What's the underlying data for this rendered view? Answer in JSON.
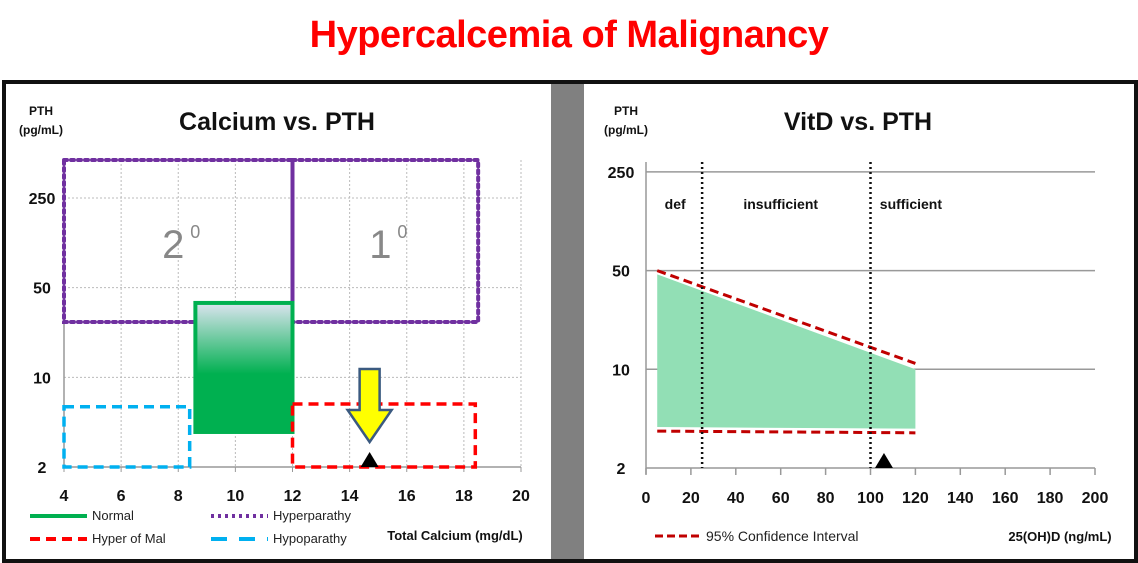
{
  "title": "Hypercalcemia of Malignancy",
  "chart_data": [
    {
      "type": "area",
      "title": "Calcium vs. PTH",
      "xlabel": "Total Calcium (mg/dL)",
      "ylabel": [
        "PTH",
        "(pg/mL)"
      ],
      "xlim": [
        4,
        20
      ],
      "xticks": [
        4,
        6,
        8,
        10,
        12,
        14,
        16,
        18,
        20
      ],
      "ylim": [
        2,
        500
      ],
      "yscale": "log",
      "yticks": [
        2,
        10,
        50,
        250
      ],
      "ytick_labels": [
        "2",
        "10",
        "50",
        "250"
      ],
      "grid": true,
      "legend_position": "bottom",
      "regions": [
        {
          "name": "Hyperparathy",
          "label": "2",
          "label_sup": "0",
          "x": [
            4,
            12
          ],
          "y": [
            27,
            500
          ],
          "style": "dotted",
          "color": "#7030a0"
        },
        {
          "name": "Hyperparathy",
          "label": "1",
          "label_sup": "0",
          "x": [
            12,
            18.5
          ],
          "y": [
            27,
            500
          ],
          "style": "dotted",
          "color": "#7030a0"
        },
        {
          "name": "Normal",
          "x": [
            8.6,
            12
          ],
          "y": [
            3.75,
            38
          ],
          "style": "solid-filled",
          "color": "#00b050"
        },
        {
          "name": "Hypoparathy",
          "x": [
            4,
            8.4
          ],
          "y": [
            2,
            5.9
          ],
          "style": "dashed",
          "color": "#00b0f0"
        },
        {
          "name": "Hyper of Mal",
          "x": [
            12,
            18.4
          ],
          "y": [
            2,
            6.2
          ],
          "style": "dashed",
          "color": "#ff0000"
        }
      ],
      "marker": {
        "shape": "triangle",
        "x": 14.7,
        "y": 2,
        "color": "#000000"
      },
      "arrow": {
        "x": 14.7,
        "color": "#ffff00",
        "direction": "down"
      },
      "legend": [
        {
          "label": "Normal",
          "style": "solid",
          "color": "#00b050"
        },
        {
          "label": "Hyperparathy",
          "style": "dotted",
          "color": "#7030a0"
        },
        {
          "label": "Hyper of Mal",
          "style": "dashed",
          "color": "#ff0000"
        },
        {
          "label": "Hypoparathy",
          "style": "longdash",
          "color": "#00b0f0"
        }
      ]
    },
    {
      "type": "area",
      "title": "VitD vs. PTH",
      "xlabel": "25(OH)D (ng/mL)",
      "ylabel": [
        "PTH",
        "(pg/mL)"
      ],
      "xlim": [
        0,
        200
      ],
      "xticks": [
        0,
        20,
        40,
        60,
        80,
        100,
        120,
        140,
        160,
        180,
        200
      ],
      "ylim": [
        2,
        500
      ],
      "yscale": "log",
      "yticks": [
        2,
        10,
        50,
        250
      ],
      "ytick_labels": [
        "2",
        "10",
        "50",
        "250"
      ],
      "grid": true,
      "legend_position": "bottom",
      "band": {
        "x": [
          5,
          120
        ],
        "upper": [
          47,
          10
        ],
        "lower": [
          3.9,
          3.8
        ],
        "color": "#92dfb5"
      },
      "ci_upper": {
        "x": [
          5,
          120
        ],
        "y": [
          50,
          11
        ]
      },
      "ci_lower": {
        "x": [
          5,
          120
        ],
        "y": [
          3.65,
          3.55
        ]
      },
      "ci_color": "#c00000",
      "thresholds": [
        25,
        100
      ],
      "zones": [
        {
          "label": "def",
          "x": 13
        },
        {
          "label": "insufficient",
          "x": 60
        },
        {
          "label": "sufficient",
          "x": 118
        }
      ],
      "marker": {
        "shape": "triangle",
        "x": 106,
        "y": 2,
        "color": "#000000"
      },
      "legend": [
        {
          "label": "95% Confidence  Interval",
          "style": "dashed",
          "color": "#c00000"
        }
      ]
    }
  ]
}
